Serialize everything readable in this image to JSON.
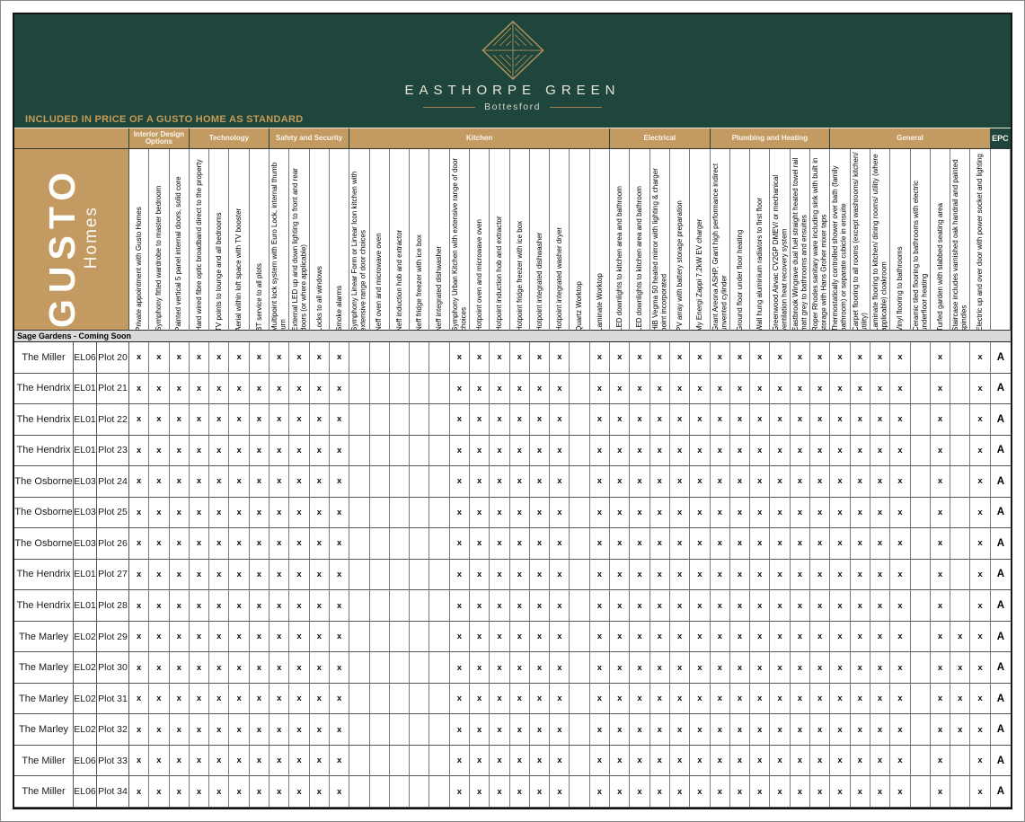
{
  "colors": {
    "green": "#1e463c",
    "tan": "#c49a63",
    "gold": "#c89a56",
    "band": "#d9d9d9"
  },
  "banner": {
    "estate_name": "EASTHORPE GREEN",
    "estate_location": "Bottesford",
    "strip_title": "INCLUDED IN PRICE OF A GUSTO HOME AS STANDARD",
    "logo_icon": "diamond-leaf-logo"
  },
  "brand": {
    "name": "GUSTO",
    "sub": "Homes"
  },
  "section_band": "Sage Gardens - Coming Soon",
  "categories": [
    {
      "label": "",
      "span": 3
    },
    {
      "label": "Interior Design Options",
      "span": 3
    },
    {
      "label": "Technology",
      "span": 4
    },
    {
      "label": "Safety and Security",
      "span": 4
    },
    {
      "label": "Kitchen",
      "span": 13
    },
    {
      "label": "Electrical",
      "span": 5
    },
    {
      "label": "Plumbing and Heating",
      "span": 6
    },
    {
      "label": "General",
      "span": 8
    },
    {
      "label": "EPC",
      "span": 1,
      "dark": true
    }
  ],
  "columns": [
    "Private appointment with Gusto Homes",
    "Symphony fitted wardrobe to master bedroom",
    "Painted vertical 5 panel internal doors, solid core",
    "Hard wired fibre optic broadband direct to the property",
    "TV points to lounge and all bedrooms",
    "Aerial within loft space with TV booster",
    "BT service to all plots",
    "Multipoint lock system with Euro Lock, internal thumb turn",
    "External LED up and down lighting to front and rear doors (or where applicable)",
    "Locks to all windows",
    "Smoke alarms",
    "Symphony Linear Form or Linear Icon kitchen with extensive range of door choices",
    "Neff oven and microwave oven",
    "Neff induction hob and extractor",
    "Neff fridge freezer with ice box",
    "Neff integrated dishwasher",
    "Symphony Urban Kitchen with extensive range of door choices",
    "Hotpoint oven and microwave oven",
    "Hotpoint induction hob and extractor",
    "Hotpoint fridge freezer with ice box",
    "Hotpoint integrated dishwasher",
    "Hotpoint integrated washer dryer",
    "Quartz Worktop",
    "Laminate Worktop",
    "LED downlights to kitchen area and bathroom",
    "LED downlights to kitchen area and bathroom",
    "HiB Vegma 50 heated mirror with lighting & charger point incorporated",
    "PV array with battery storage preparation",
    "My Energi Zappi 7.2kW EV charger",
    "Grant Areona ASHP, Grant high performance indirect unvented cylinder",
    "Ground floor under floor heating",
    "Wall hung aluminium radiators to first floor",
    "Greenwood Airvac CV2GP DMEV/ or mechanical ventilation heat recovery system",
    "Eastbrook Wingrave dual fuel straight heated towel rail matt grey to bathrooms and ensuites",
    "Roper Rhodes sanitary ware including sink with built in storage with Hans Groher mixer taps",
    "Thermostatically controlled shower over bath (family bathroom) or separate cubicle in ensuite",
    "Carpet flooring to all rooms (except washrooms/ kitchen/ utility)",
    "Laminate flooring to kitchen/ dining rooms/ utility (where applicable) cloakroom",
    "Vinyl flooring to bathrooms",
    "Ceramic tiled flooring to bathrooms with electric underfloor heating",
    "Turfed garden with slabbed seating area",
    "Staircase includes varnished oak handrail and painted spindles",
    "Electric up and over door with power socket and lighting",
    ""
  ],
  "rows": [
    {
      "name": "The Miller",
      "code": "EL06",
      "plot": "Plot 20",
      "marks": "xxxxxxxxxxx-----xxxxxx-xxxxxxxxxxxxxxxx-x-x",
      "epc": "A"
    },
    {
      "name": "The Hendrix",
      "code": "EL01",
      "plot": "Plot 21",
      "marks": "xxxxxxxxxxx-----xxxxxx-xxxxxxxxxxxxxxxx-x-x",
      "epc": "A"
    },
    {
      "name": "The Hendrix",
      "code": "EL01",
      "plot": "Plot 22",
      "marks": "xxxxxxxxxxx-----xxxxxx-xxxxxxxxxxxxxxxx-x-x",
      "epc": "A"
    },
    {
      "name": "The Hendrix",
      "code": "EL01",
      "plot": "Plot 23",
      "marks": "xxxxxxxxxxx-----xxxxxx-xxxxxxxxxxxxxxxx-x-x",
      "epc": "A"
    },
    {
      "name": "The Osborne",
      "code": "EL03",
      "plot": "Plot 24",
      "marks": "xxxxxxxxxxx-----xxxxxx-xxxxxxxxxxxxxxxx-x-x",
      "epc": "A"
    },
    {
      "name": "The Osborne",
      "code": "EL03",
      "plot": "Plot 25",
      "marks": "xxxxxxxxxxx-----xxxxxx-xxxxxxxxxxxxxxxx-x-x",
      "epc": "A"
    },
    {
      "name": "The Osborne",
      "code": "EL03",
      "plot": "Plot 26",
      "marks": "xxxxxxxxxxx-----xxxxxx-xxxxxxxxxxxxxxxx-x-x",
      "epc": "A"
    },
    {
      "name": "The Hendrix",
      "code": "EL01",
      "plot": "Plot 27",
      "marks": "xxxxxxxxxxx-----xxxxxx-xxxxxxxxxxxxxxxx-x-x",
      "epc": "A"
    },
    {
      "name": "The Hendrix",
      "code": "EL01",
      "plot": "Plot 28",
      "marks": "xxxxxxxxxxx-----xxxxxx-xxxxxxxxxxxxxxxx-x-x",
      "epc": "A"
    },
    {
      "name": "The Marley",
      "code": "EL02",
      "plot": "Plot 29",
      "marks": "xxxxxxxxxxx-----xxxxxx-xxxxxxxxxxxxxxxx-xxx",
      "epc": "A"
    },
    {
      "name": "The Marley",
      "code": "EL02",
      "plot": "Plot 30",
      "marks": "xxxxxxxxxxx-----xxxxxx-xxxxxxxxxxxxxxxx-xxx",
      "epc": "A"
    },
    {
      "name": "The Marley",
      "code": "EL02",
      "plot": "Plot 31",
      "marks": "xxxxxxxxxxx-----xxxxxx-xxxxxxxxxxxxxxxx-xxx",
      "epc": "A"
    },
    {
      "name": "The Marley",
      "code": "EL02",
      "plot": "Plot 32",
      "marks": "xxxxxxxxxxx-----xxxxxx-xxxxxxxxxxxxxxxx-xxx",
      "epc": "A"
    },
    {
      "name": "The Miller",
      "code": "EL06",
      "plot": "Plot 33",
      "marks": "xxxxxxxxxxx-----xxxxxx-xxxxxxxxxxxxxxxx-x-x",
      "epc": "A"
    },
    {
      "name": "The Miller",
      "code": "EL06",
      "plot": "Plot 34",
      "marks": "xxxxxxxxxxx-----xxxxxx-xxxxxxxxxxxxxxxx-x-x",
      "epc": "A"
    }
  ]
}
